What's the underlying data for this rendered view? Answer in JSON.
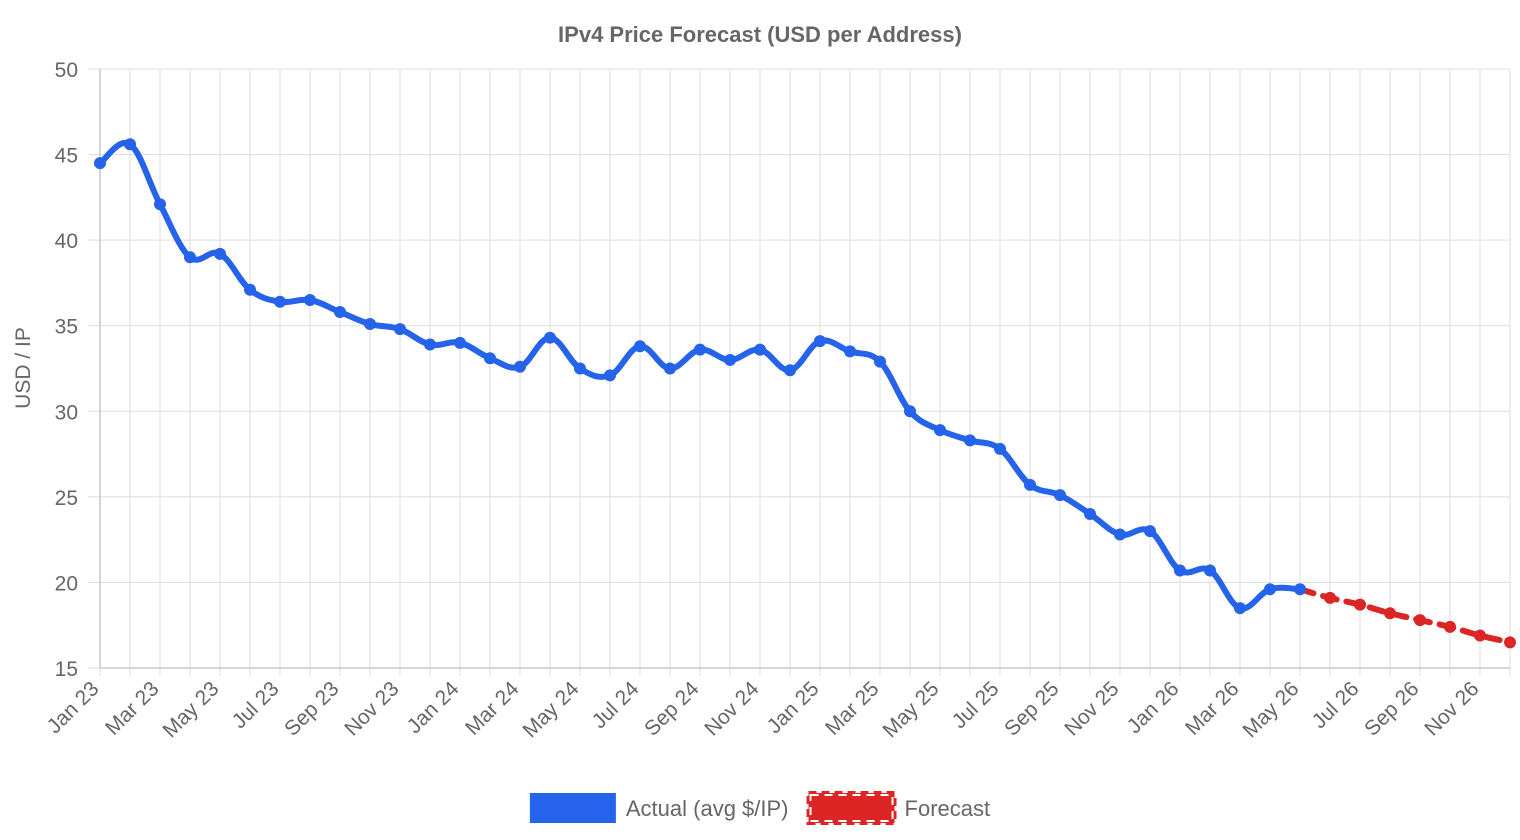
{
  "chart_data": {
    "type": "line",
    "title": "IPv4 Price Forecast (USD per Address)",
    "xlabel": "",
    "ylabel": "USD / IP",
    "ylim": [
      15,
      50
    ],
    "y_ticks": [
      15,
      20,
      25,
      30,
      35,
      40,
      45,
      50
    ],
    "grid": true,
    "legend_position": "bottom",
    "x": [
      "Jan 23",
      "Feb 23",
      "Mar 23",
      "Apr 23",
      "May 23",
      "Jun 23",
      "Jul 23",
      "Aug 23",
      "Sep 23",
      "Oct 23",
      "Nov 23",
      "Dec 23",
      "Jan 24",
      "Feb 24",
      "Mar 24",
      "Apr 24",
      "May 24",
      "Jun 24",
      "Jul 24",
      "Aug 24",
      "Sep 24",
      "Oct 24",
      "Nov 24",
      "Dec 24",
      "Jan 25",
      "Feb 25",
      "Mar 25",
      "Apr 25",
      "May 25",
      "Jun 25",
      "Jul 25",
      "Aug 25",
      "Sep 25",
      "Oct 25",
      "Nov 25",
      "Dec 25",
      "Jan 26",
      "Feb 26",
      "Mar 26",
      "Apr 26",
      "May 26",
      "Jun 26",
      "Jul 26",
      "Aug 26",
      "Sep 26",
      "Oct 26",
      "Nov 26",
      "Dec 26"
    ],
    "x_tick_labels": [
      "Jan 23",
      "Mar 23",
      "May 23",
      "Jul 23",
      "Sep 23",
      "Nov 23",
      "Jan 24",
      "Mar 24",
      "May 24",
      "Jul 24",
      "Sep 24",
      "Nov 24",
      "Jan 25",
      "Mar 25",
      "May 25",
      "Jul 25",
      "Sep 25",
      "Nov 25",
      "Jan 26",
      "Mar 26",
      "May 26",
      "Jul 26",
      "Sep 26",
      "Nov 26"
    ],
    "series": [
      {
        "name": "Actual (avg $/IP)",
        "color": "#2563eb",
        "style": "solid",
        "values": [
          44.5,
          45.6,
          42.1,
          39.0,
          39.2,
          37.1,
          36.4,
          36.5,
          35.8,
          35.1,
          34.8,
          33.9,
          34.0,
          33.1,
          32.6,
          34.3,
          32.5,
          32.1,
          33.8,
          32.5,
          33.6,
          33.0,
          33.6,
          32.4,
          34.1,
          33.5,
          32.9,
          30.0,
          28.9,
          28.3,
          27.8,
          25.7,
          25.1,
          24.0,
          22.8,
          23.0,
          20.7,
          20.7,
          18.5,
          19.6,
          19.6,
          null,
          null,
          null,
          null,
          null,
          null,
          null
        ]
      },
      {
        "name": "Forecast",
        "color": "#dc2626",
        "style": "dashed",
        "values": [
          null,
          null,
          null,
          null,
          null,
          null,
          null,
          null,
          null,
          null,
          null,
          null,
          null,
          null,
          null,
          null,
          null,
          null,
          null,
          null,
          null,
          null,
          null,
          null,
          null,
          null,
          null,
          null,
          null,
          null,
          null,
          null,
          null,
          null,
          null,
          null,
          null,
          null,
          null,
          null,
          19.6,
          19.1,
          18.7,
          18.2,
          17.8,
          17.4,
          16.9,
          16.5
        ]
      }
    ]
  }
}
